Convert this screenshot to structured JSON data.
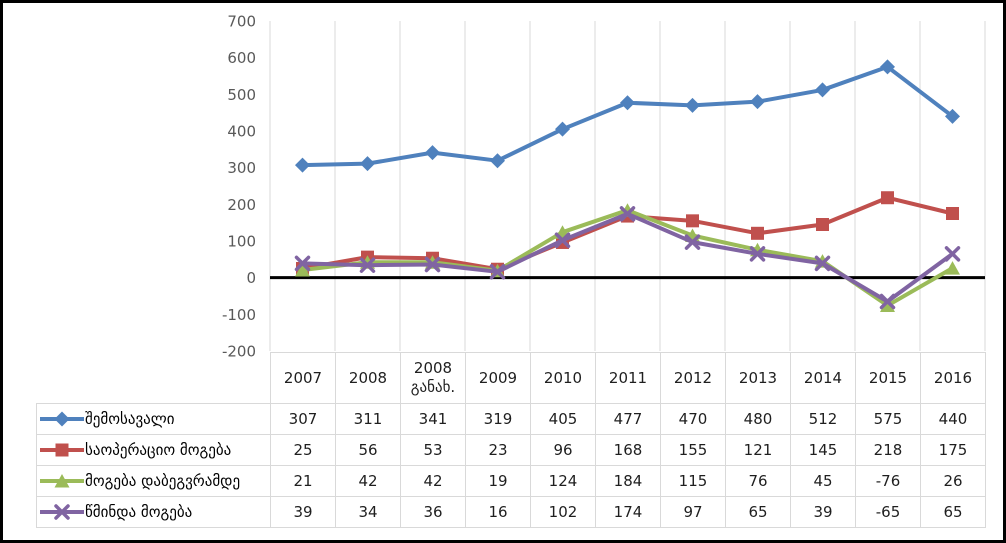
{
  "chart_data": {
    "type": "line",
    "title": "",
    "categories": [
      "2007",
      "2008",
      "2008 განახ.",
      "2009",
      "2010",
      "2011",
      "2012",
      "2013",
      "2014",
      "2015",
      "2016"
    ],
    "series": [
      {
        "name": "შემოსავალი",
        "marker": "diamond",
        "color": "#4F81BD",
        "values": [
          307,
          311,
          341,
          319,
          405,
          477,
          470,
          480,
          512,
          575,
          440
        ]
      },
      {
        "name": "საოპერაციო მოგება",
        "marker": "square",
        "color": "#C0504D",
        "values": [
          25,
          56,
          53,
          23,
          96,
          168,
          155,
          121,
          145,
          218,
          175
        ]
      },
      {
        "name": "მოგება დაბეგვრამდე",
        "marker": "triangle",
        "color": "#9BBB59",
        "values": [
          21,
          42,
          42,
          19,
          124,
          184,
          115,
          76,
          45,
          -76,
          26
        ]
      },
      {
        "name": "წმინდა მოგება",
        "marker": "x",
        "color": "#8064A2",
        "values": [
          39,
          34,
          36,
          16,
          102,
          174,
          97,
          65,
          39,
          -65,
          65
        ]
      }
    ],
    "y_axis": {
      "min": -200,
      "max": 700,
      "step": 100,
      "tick_labels": [
        "700",
        "600",
        "500",
        "400",
        "300",
        "200",
        "100",
        "0",
        "-100",
        "-200"
      ],
      "label_color": "#595959"
    },
    "gridlines": {
      "vertical": true,
      "horizontal": false,
      "color": "#D9D9D9"
    },
    "zero_line": {
      "show": true,
      "color": "#000000"
    },
    "legend_position": "data-table-left",
    "data_table": {
      "show": true,
      "border_color": "#D9D9D9"
    }
  },
  "frame": {
    "background": "#FFFFFF",
    "border_color": "#000000"
  }
}
